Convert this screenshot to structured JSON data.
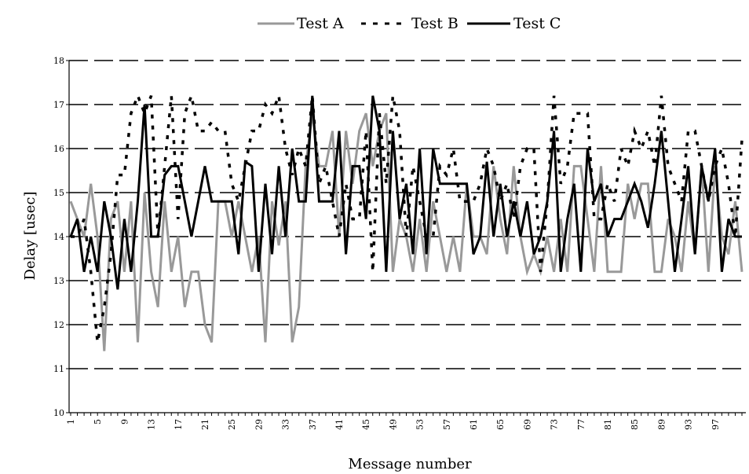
{
  "chart_data": {
    "type": "line",
    "title": "",
    "xlabel": "Message number",
    "ylabel": "Delay [usec]",
    "ylim": [
      10,
      18
    ],
    "yticks": [
      10,
      11,
      12,
      13,
      14,
      15,
      16,
      17,
      18
    ],
    "xlim": [
      1,
      100
    ],
    "xtick_labels": [
      "1",
      "5",
      "9",
      "13",
      "17",
      "21",
      "25",
      "29",
      "33",
      "37",
      "41",
      "45",
      "49",
      "53",
      "57",
      "61",
      "65",
      "69",
      "73",
      "77",
      "81",
      "85",
      "89",
      "93",
      "97"
    ],
    "grid": "horizontal dashed",
    "legend_position": "top",
    "series": [
      {
        "name": "Test A",
        "color": "#999999",
        "style": "solid",
        "values": [
          14.8,
          14.4,
          14.0,
          15.2,
          14.0,
          11.4,
          14.4,
          14.8,
          13.2,
          14.8,
          11.6,
          15.0,
          13.2,
          12.4,
          14.8,
          13.2,
          14.0,
          12.4,
          13.2,
          13.2,
          12.0,
          11.6,
          14.8,
          14.8,
          14.0,
          14.8,
          14.0,
          13.2,
          14.0,
          11.6,
          14.8,
          13.8,
          14.8,
          11.6,
          12.4,
          15.6,
          16.8,
          15.6,
          15.6,
          16.4,
          14.0,
          16.4,
          15.2,
          16.4,
          16.8,
          15.6,
          16.4,
          16.8,
          13.2,
          14.4,
          14.0,
          13.2,
          14.4,
          13.2,
          14.8,
          14.0,
          13.2,
          14.0,
          13.2,
          15.2,
          14.0,
          14.0,
          13.6,
          15.6,
          14.4,
          13.6,
          15.6,
          14.0,
          13.2,
          13.6,
          13.2,
          14.0,
          13.2,
          14.4,
          13.2,
          15.6,
          15.6,
          14.4,
          13.2,
          15.6,
          13.2,
          13.2,
          13.2,
          15.2,
          14.4,
          15.2,
          15.2,
          13.2,
          13.2,
          14.4,
          14.0,
          13.2,
          14.8,
          13.6,
          15.6,
          13.2,
          15.6,
          14.0,
          13.6,
          14.8,
          13.2
        ]
      },
      {
        "name": "Test B",
        "color": "#000000",
        "style": "dashed",
        "values": [
          14.0,
          14.0,
          14.4,
          13.2,
          11.6,
          12.4,
          13.6,
          15.4,
          15.4,
          16.8,
          17.2,
          16.8,
          17.2,
          14.0,
          15.6,
          17.2,
          14.4,
          16.8,
          17.2,
          16.4,
          16.4,
          16.6,
          16.4,
          16.4,
          15.2,
          14.8,
          15.6,
          16.4,
          16.4,
          17.0,
          16.8,
          17.2,
          16.0,
          15.4,
          16.0,
          15.6,
          17.2,
          15.2,
          15.6,
          14.8,
          14.0,
          15.2,
          14.4,
          14.4,
          16.4,
          13.2,
          16.8,
          15.2,
          17.2,
          16.4,
          14.0,
          15.6,
          14.8,
          14.0,
          14.0,
          15.6,
          15.4,
          16.0,
          14.8,
          14.8,
          14.8,
          15.2,
          16.0,
          15.6,
          14.8,
          15.2,
          14.4,
          15.6,
          16.0,
          16.0,
          13.2,
          14.8,
          17.2,
          15.2,
          15.6,
          16.8,
          16.8,
          16.8,
          14.4,
          14.4,
          15.2,
          14.8,
          16.0,
          15.6,
          16.4,
          16.0,
          16.4,
          15.6,
          17.2,
          15.6,
          15.2,
          14.8,
          16.4,
          16.4,
          15.6,
          14.8,
          15.6,
          16.0,
          15.2,
          14.0,
          16.2
        ]
      },
      {
        "name": "Test C",
        "color": "#000000",
        "style": "solid",
        "values": [
          14.0,
          14.4,
          13.2,
          14.0,
          13.2,
          14.8,
          14.0,
          12.8,
          14.4,
          13.2,
          14.8,
          17.0,
          14.0,
          14.0,
          15.4,
          15.6,
          15.6,
          14.8,
          14.0,
          14.8,
          15.6,
          14.8,
          14.8,
          14.8,
          14.8,
          13.6,
          15.7,
          15.6,
          13.2,
          15.2,
          13.6,
          15.6,
          14.0,
          16.0,
          14.8,
          14.8,
          17.2,
          14.8,
          14.8,
          14.8,
          16.4,
          13.6,
          15.6,
          15.6,
          14.4,
          17.2,
          16.4,
          13.2,
          16.4,
          14.4,
          15.2,
          13.6,
          16.0,
          13.6,
          16.0,
          15.2,
          15.2,
          15.2,
          15.2,
          15.2,
          13.6,
          14.0,
          15.7,
          14.0,
          15.2,
          14.0,
          14.8,
          14.0,
          14.8,
          13.6,
          14.0,
          14.8,
          16.4,
          13.2,
          14.4,
          15.2,
          13.2,
          16.0,
          14.8,
          15.2,
          14.0,
          14.4,
          14.4,
          14.8,
          15.2,
          14.8,
          14.2,
          15.2,
          16.4,
          14.8,
          13.2,
          14.4,
          15.6,
          13.6,
          15.6,
          14.8,
          16.0,
          13.2,
          14.4,
          14.0,
          14.0
        ]
      }
    ]
  }
}
